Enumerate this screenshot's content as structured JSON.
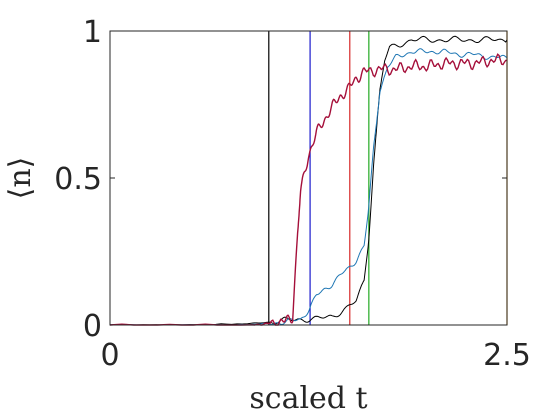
{
  "chart_data": {
    "type": "line",
    "xlabel": "scaled t",
    "ylabel": "⟨n⟩",
    "xlim": [
      0,
      2.5
    ],
    "ylim": [
      0,
      1
    ],
    "xticks": [
      {
        "value": 0,
        "label": "0"
      },
      {
        "value": 2.5,
        "label": "2.5"
      }
    ],
    "yticks": [
      {
        "value": 0,
        "label": "0"
      },
      {
        "value": 0.5,
        "label": "0.5"
      },
      {
        "value": 1,
        "label": "1"
      }
    ],
    "grid": false,
    "legend": "none",
    "series": [
      {
        "color": "#000000",
        "x": [
          0,
          0.5,
          0.9,
          1.0,
          1.1,
          1.2,
          1.3,
          1.4,
          1.5,
          1.55,
          1.6,
          1.63,
          1.66,
          1.7,
          1.73,
          1.76,
          1.8,
          1.85,
          1.9,
          2.0,
          2.1,
          2.2,
          2.3,
          2.4,
          2.5
        ],
        "y": [
          0.0,
          0.0,
          0.005,
          0.01,
          0.015,
          0.02,
          0.02,
          0.03,
          0.06,
          0.08,
          0.15,
          0.3,
          0.55,
          0.8,
          0.9,
          0.94,
          0.95,
          0.96,
          0.97,
          0.97,
          0.97,
          0.97,
          0.97,
          0.97,
          0.97
        ]
      },
      {
        "color": "#1f77b4",
        "x": [
          0,
          0.8,
          1.0,
          1.1,
          1.2,
          1.25,
          1.3,
          1.35,
          1.4,
          1.45,
          1.5,
          1.55,
          1.6,
          1.63,
          1.66,
          1.7,
          1.75,
          1.8,
          1.9,
          2.0,
          2.1,
          2.2,
          2.3,
          2.4,
          2.5
        ],
        "y": [
          0.0,
          0.0,
          0.005,
          0.01,
          0.02,
          0.05,
          0.1,
          0.12,
          0.14,
          0.17,
          0.19,
          0.22,
          0.27,
          0.4,
          0.6,
          0.8,
          0.88,
          0.91,
          0.93,
          0.93,
          0.93,
          0.92,
          0.92,
          0.91,
          0.91
        ]
      },
      {
        "color": "#a50f3a",
        "x": [
          0,
          0.9,
          1.0,
          1.1,
          1.15,
          1.18,
          1.2,
          1.25,
          1.3,
          1.35,
          1.4,
          1.45,
          1.5,
          1.55,
          1.6,
          1.7,
          1.8,
          1.9,
          2.0,
          2.1,
          2.2,
          2.3,
          2.4,
          2.5
        ],
        "y": [
          0.0,
          0.0,
          0.005,
          0.01,
          0.03,
          0.3,
          0.45,
          0.58,
          0.65,
          0.7,
          0.74,
          0.78,
          0.8,
          0.84,
          0.86,
          0.87,
          0.87,
          0.88,
          0.88,
          0.89,
          0.89,
          0.89,
          0.9,
          0.9
        ]
      }
    ],
    "vlines": [
      {
        "x": 1.0,
        "color": "#000000"
      },
      {
        "x": 1.26,
        "color": "#1a1acc"
      },
      {
        "x": 1.51,
        "color": "#d62728"
      },
      {
        "x": 1.63,
        "color": "#22aa22"
      },
      {
        "x": 2.5,
        "color": "#ff9900"
      }
    ]
  }
}
